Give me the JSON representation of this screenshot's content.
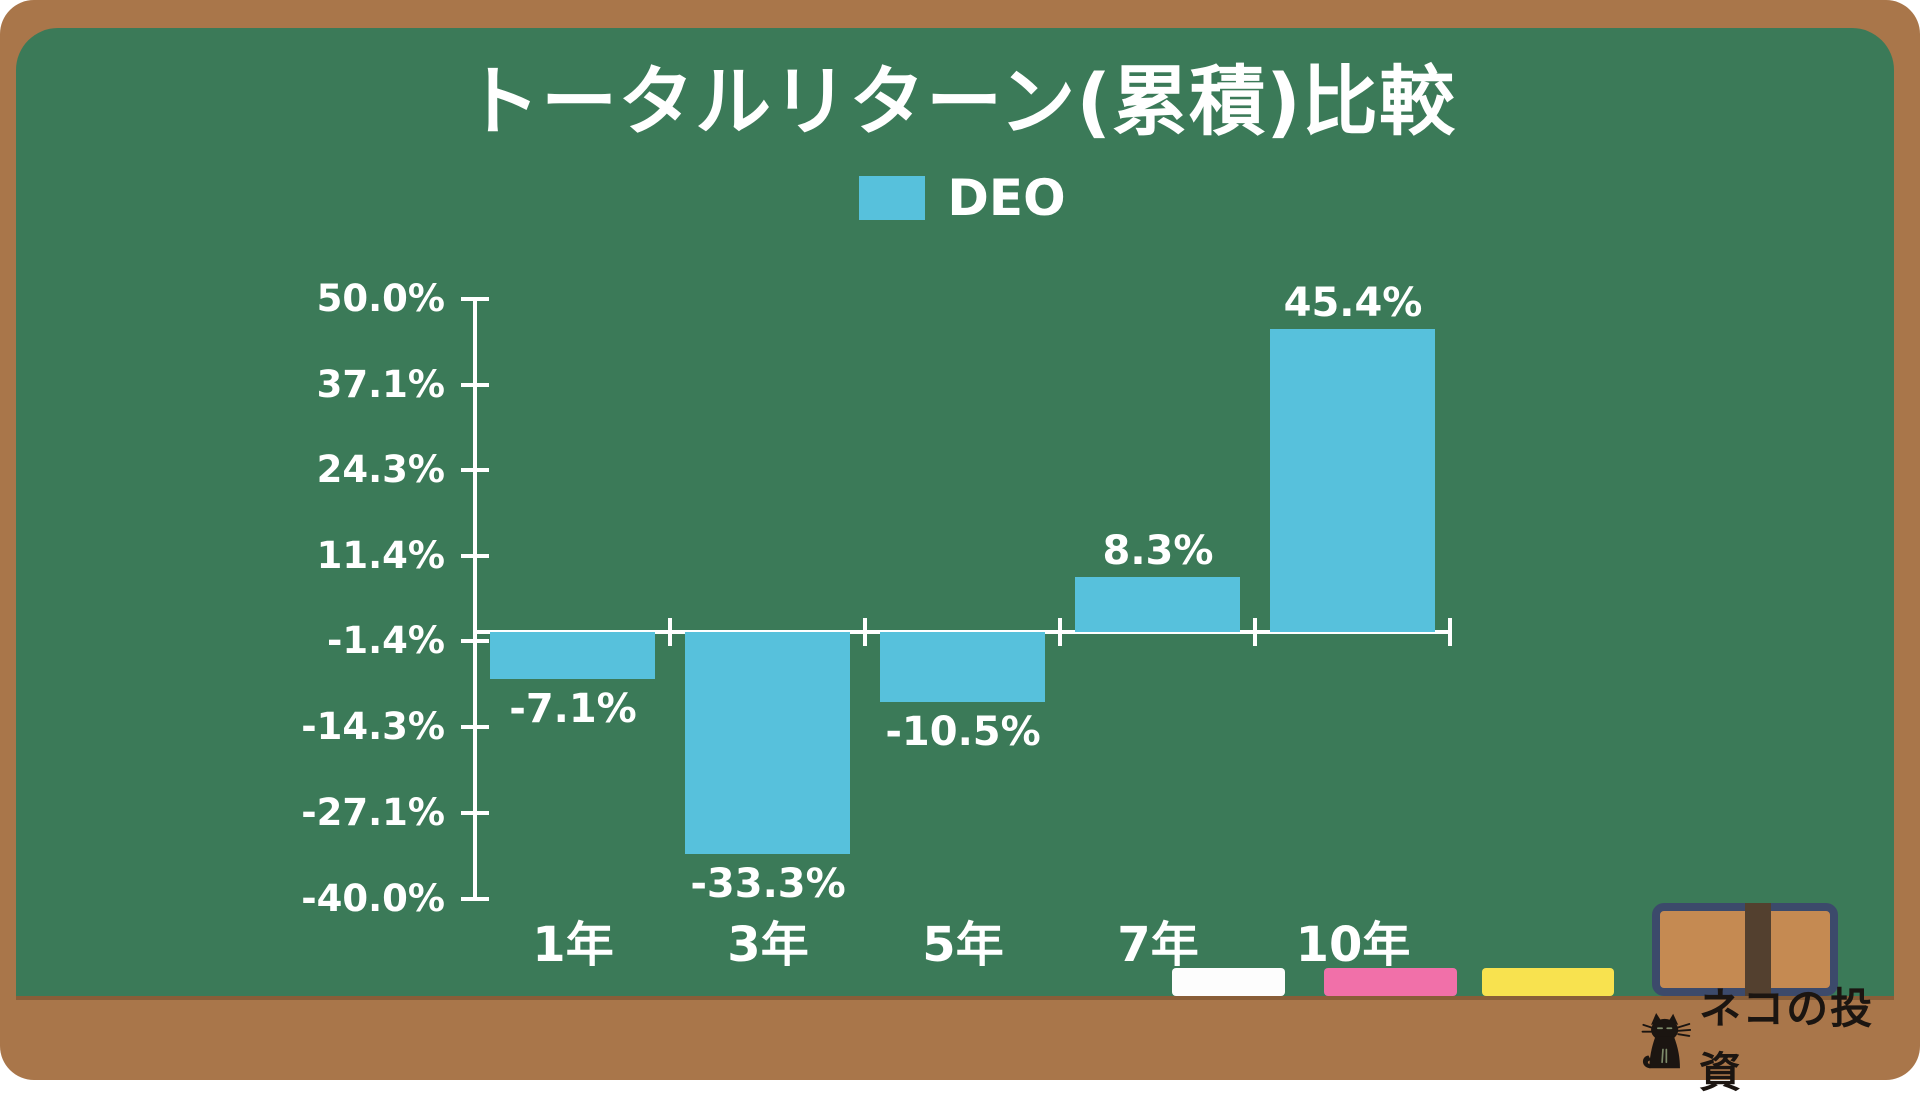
{
  "page": {
    "background": "#ffffff"
  },
  "board": {
    "frame_color": "#a9764a",
    "surface_color": "#3b7a58"
  },
  "title": {
    "text": "トータルリターン(累積)比較",
    "color": "#ffffff"
  },
  "legend": {
    "items": [
      {
        "label": "DEO",
        "color": "#57c1dc"
      }
    ]
  },
  "chart_data": {
    "type": "bar",
    "title": "トータルリターン(累積)比較",
    "categories": [
      "1年",
      "3年",
      "5年",
      "7年",
      "10年"
    ],
    "series": [
      {
        "name": "DEO",
        "color": "#57c1dc",
        "values": [
          -7.1,
          -33.3,
          -10.5,
          8.3,
          45.4
        ]
      }
    ],
    "value_labels": [
      "-7.1%",
      "-33.3%",
      "-10.5%",
      "8.3%",
      "45.4%"
    ],
    "y_ticks": [
      {
        "value": 50.0,
        "label": "50.0%"
      },
      {
        "value": 37.1,
        "label": "37.1%"
      },
      {
        "value": 24.3,
        "label": "24.3%"
      },
      {
        "value": 11.4,
        "label": "11.4%"
      },
      {
        "value": -1.4,
        "label": "-1.4%"
      },
      {
        "value": -14.3,
        "label": "-14.3%"
      },
      {
        "value": -27.1,
        "label": "-27.1%"
      },
      {
        "value": -40.0,
        "label": "-40.0%"
      }
    ],
    "ylim": [
      -40.0,
      50.0
    ],
    "xlabel": "",
    "ylabel": "",
    "grid": false,
    "legend_position": "top-center",
    "axis_color": "#ffffff",
    "text_color": "#ffffff"
  },
  "decorations": {
    "chalks": [
      {
        "name": "white-chalk",
        "color": "#fdfdfd"
      },
      {
        "name": "pink-chalk",
        "color": "#f170a9"
      },
      {
        "name": "yellow-chalk",
        "color": "#f8e24f"
      }
    ],
    "eraser": {
      "body_color": "#c58a52",
      "band_color": "#53402f",
      "border_color": "#3c4a6b"
    }
  },
  "branding": {
    "text": "ネコの投資",
    "icon": "black-cat-icon",
    "color": "#1b1511"
  }
}
